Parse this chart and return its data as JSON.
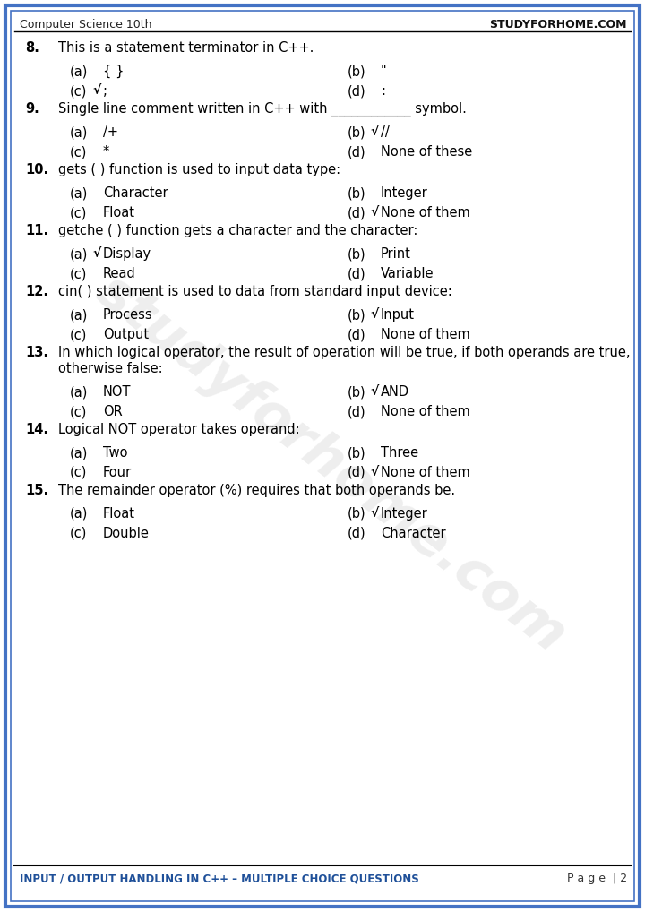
{
  "header_left": "Computer Science 10th",
  "header_right": "STUDYFORHOME.COM",
  "footer_left": "INPUT / OUTPUT HANDLING IN C++ – MULTIPLE CHOICE QUESTIONS",
  "footer_right": "P a g e  | 2",
  "bg_color": "#ffffff",
  "border_color": "#4472C4",
  "footer_text_color": "#1F5099",
  "watermark_text": "studyforhome.com",
  "questions": [
    {
      "num": "8.",
      "text": "This is a statement terminator in C++.",
      "multiline": false,
      "options": [
        {
          "label": "(a)",
          "text": "{ }",
          "correct": false
        },
        {
          "label": "(b)",
          "text": "\"",
          "correct": false
        },
        {
          "label": "(c)",
          "text": ";",
          "correct": true
        },
        {
          "label": "(d)",
          "text": ":",
          "correct": false
        }
      ]
    },
    {
      "num": "9.",
      "text": "Single line comment written in C++ with ____________ symbol.",
      "multiline": false,
      "options": [
        {
          "label": "(a)",
          "text": "/+",
          "correct": false
        },
        {
          "label": "(b)",
          "text": "//",
          "correct": true
        },
        {
          "label": "(c)",
          "text": "*",
          "correct": false
        },
        {
          "label": "(d)",
          "text": "None of these",
          "correct": false
        }
      ]
    },
    {
      "num": "10.",
      "text": "gets ( ) function is used to input data type:",
      "multiline": false,
      "options": [
        {
          "label": "(a)",
          "text": "Character",
          "correct": false
        },
        {
          "label": "(b)",
          "text": "Integer",
          "correct": false
        },
        {
          "label": "(c)",
          "text": "Float",
          "correct": false
        },
        {
          "label": "(d)",
          "text": "None of them",
          "correct": true
        }
      ]
    },
    {
      "num": "11.",
      "text": "getche ( ) function gets a character and the character:",
      "multiline": false,
      "options": [
        {
          "label": "(a)",
          "text": "Display",
          "correct": true
        },
        {
          "label": "(b)",
          "text": "Print",
          "correct": false
        },
        {
          "label": "(c)",
          "text": "Read",
          "correct": false
        },
        {
          "label": "(d)",
          "text": "Variable",
          "correct": false
        }
      ]
    },
    {
      "num": "12.",
      "text": "cin( ) statement is used to data from standard input device:",
      "multiline": false,
      "options": [
        {
          "label": "(a)",
          "text": "Process",
          "correct": false
        },
        {
          "label": "(b)",
          "text": "Input",
          "correct": true
        },
        {
          "label": "(c)",
          "text": "Output",
          "correct": false
        },
        {
          "label": "(d)",
          "text": "None of them",
          "correct": false
        }
      ]
    },
    {
      "num": "13.",
      "text": "In which logical operator, the result of operation will be true, if both operands are true,\notherwise false:",
      "multiline": true,
      "options": [
        {
          "label": "(a)",
          "text": "NOT",
          "correct": false
        },
        {
          "label": "(b)",
          "text": "AND",
          "correct": true
        },
        {
          "label": "(c)",
          "text": "OR",
          "correct": false
        },
        {
          "label": "(d)",
          "text": "None of them",
          "correct": false
        }
      ]
    },
    {
      "num": "14.",
      "text": "Logical NOT operator takes operand:",
      "multiline": false,
      "options": [
        {
          "label": "(a)",
          "text": "Two",
          "correct": false
        },
        {
          "label": "(b)",
          "text": "Three",
          "correct": false
        },
        {
          "label": "(c)",
          "text": "Four",
          "correct": false
        },
        {
          "label": "(d)",
          "text": "None of them",
          "correct": true
        }
      ]
    },
    {
      "num": "15.",
      "text": "The remainder operator (%) requires that both operands be.",
      "multiline": false,
      "options": [
        {
          "label": "(a)",
          "text": "Float",
          "correct": false
        },
        {
          "label": "(b)",
          "text": "Integer",
          "correct": true
        },
        {
          "label": "(c)",
          "text": "Double",
          "correct": false
        },
        {
          "label": "(d)",
          "text": "Character",
          "correct": false
        }
      ]
    }
  ]
}
